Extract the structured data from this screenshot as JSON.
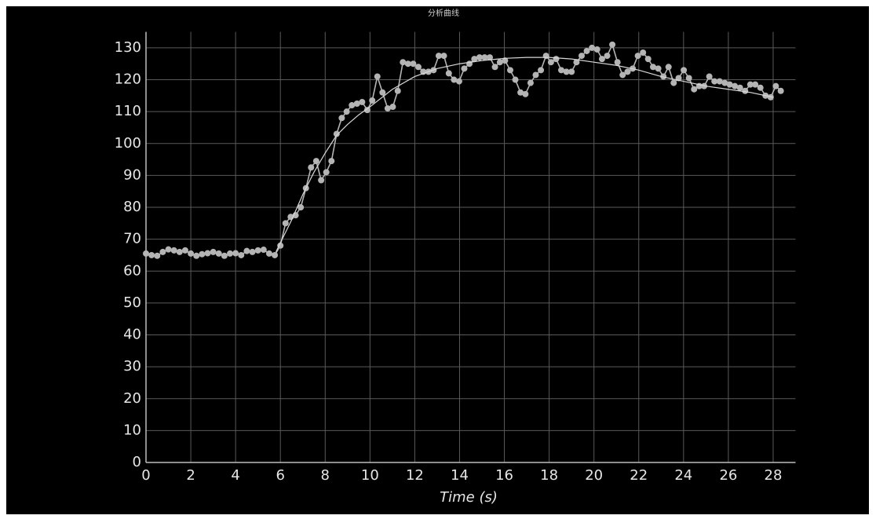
{
  "chart_data": {
    "type": "line",
    "title": "分析曲线",
    "x_label": "Time (s)",
    "xlim": [
      0,
      29
    ],
    "ylim": [
      0,
      135
    ],
    "xticks": [
      0,
      2,
      4,
      6,
      8,
      10,
      12,
      14,
      16,
      18,
      20,
      22,
      24,
      26,
      28
    ],
    "yticks": [
      0,
      10,
      20,
      30,
      40,
      50,
      60,
      70,
      80,
      90,
      100,
      110,
      120,
      130
    ],
    "grid": true,
    "series": [
      {
        "color": "#b4b4b4",
        "markers": true,
        "x": [
          0,
          0.25,
          0.5,
          0.75,
          1,
          1.25,
          1.5,
          1.75,
          2,
          2.25,
          2.5,
          2.75,
          3,
          3.25,
          3.5,
          3.75,
          4,
          4.25,
          4.5,
          4.75,
          5,
          5.25,
          5.5,
          5.75,
          6.0,
          6.23,
          6.46,
          6.68,
          6.91,
          7.14,
          7.37,
          7.6,
          7.82,
          8.05,
          8.28,
          8.51,
          8.74,
          8.96,
          9.19,
          9.42,
          9.65,
          9.88,
          10.1,
          10.33,
          10.56,
          10.79,
          11.02,
          11.24,
          11.47,
          11.7,
          11.93,
          12.16,
          12.38,
          12.61,
          12.84,
          13.07,
          13.3,
          13.52,
          13.75,
          13.98,
          14.21,
          14.44,
          14.66,
          14.89,
          15.12,
          15.35,
          15.58,
          15.8,
          16.03,
          16.26,
          16.49,
          16.72,
          16.94,
          17.17,
          17.4,
          17.63,
          17.86,
          18.08,
          18.31,
          18.54,
          18.77,
          19.0,
          19.22,
          19.45,
          19.68,
          19.91,
          20.14,
          20.36,
          20.59,
          20.82,
          21.05,
          21.28,
          21.5,
          21.73,
          21.96,
          22.19,
          22.42,
          22.64,
          22.87,
          23.1,
          23.33,
          23.56,
          23.78,
          24.01,
          24.24,
          24.47,
          24.7,
          24.92,
          25.15,
          25.38,
          25.61,
          25.84,
          26.06,
          26.29,
          26.52,
          26.75,
          26.98,
          27.2,
          27.43,
          27.66,
          27.89,
          28.12,
          28.34
        ],
        "values": [
          65.5,
          65,
          64.8,
          66,
          66.8,
          66.5,
          66,
          66.5,
          65.5,
          64.8,
          65.3,
          65.6,
          66,
          65.5,
          64.8,
          65.5,
          65.6,
          65,
          66.3,
          66,
          66.5,
          66.7,
          65.5,
          65,
          68,
          75,
          77,
          77.5,
          80,
          86,
          92.5,
          94.5,
          88.5,
          91,
          94.5,
          103,
          108,
          110,
          112,
          112.5,
          113,
          110.5,
          113.5,
          121,
          116,
          111,
          111.5,
          116.5,
          125.5,
          125,
          125,
          124,
          122.5,
          122.5,
          123,
          127.5,
          127.5,
          122,
          120,
          119.5,
          123.5,
          125,
          126.5,
          127,
          127,
          127,
          124,
          125.5,
          126,
          123,
          120,
          116,
          115.5,
          119,
          121.5,
          123,
          127.5,
          125.5,
          126.5,
          123,
          122.5,
          122.5,
          125.5,
          127.5,
          129,
          130,
          129.5,
          126.5,
          127.5,
          131,
          125.5,
          121.5,
          122.5,
          123.5,
          127.5,
          128.5,
          126.5,
          124,
          123.5,
          121,
          124,
          119,
          120.5,
          123,
          120.5,
          117,
          118,
          118,
          121,
          119.5,
          119.5,
          119,
          118.5,
          118,
          117.5,
          116.5,
          118.5,
          118.5,
          117.5,
          115,
          114.5,
          118,
          116.5
        ]
      },
      {
        "color": "#d8d8d8",
        "markers": false,
        "x": [
          5.8,
          6.5,
          7,
          7.5,
          8,
          8.5,
          9,
          9.5,
          10,
          11,
          12,
          13,
          14,
          15,
          16,
          17,
          18,
          19,
          20,
          21,
          22,
          23,
          24,
          25,
          26,
          27,
          28
        ],
        "values": [
          66,
          76,
          84,
          91,
          97,
          102.5,
          106,
          109,
          111.5,
          117,
          121,
          123.5,
          125,
          126,
          126.7,
          127,
          127,
          126.5,
          125.5,
          124.5,
          123,
          121,
          119.5,
          118,
          117,
          116,
          114.5
        ]
      }
    ]
  }
}
